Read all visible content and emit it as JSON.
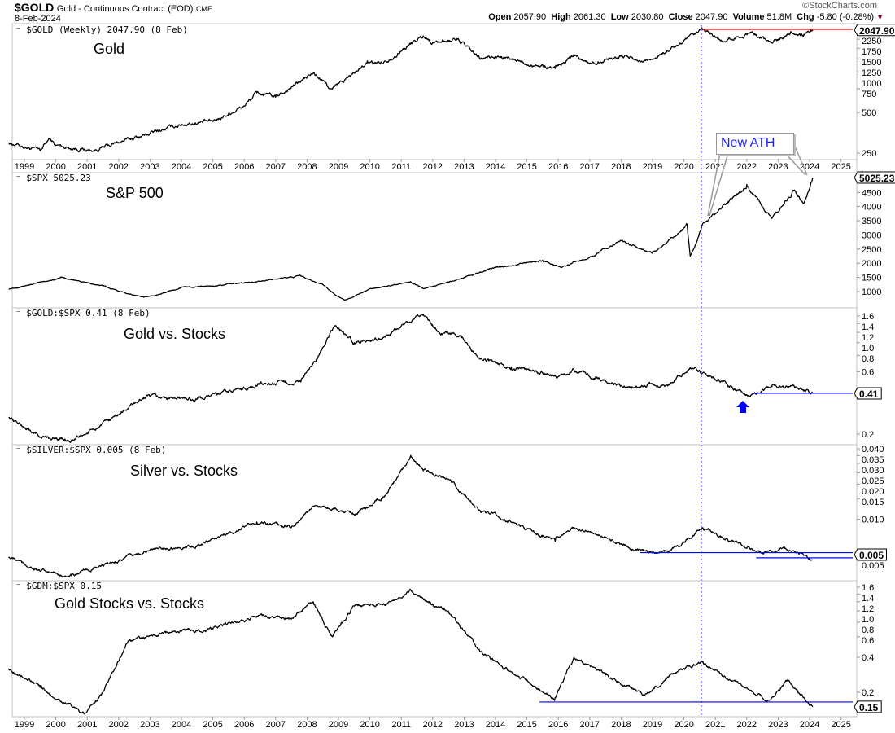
{
  "header": {
    "symbol": "$GOLD",
    "name": "Gold - Continuous Contract (EOD)",
    "exchange": "CME",
    "date": "8-Feb-2024",
    "watermark": "©StockCharts.com",
    "open_label": "Open",
    "open": "2057.90",
    "high_label": "High",
    "high": "2061.30",
    "low_label": "Low",
    "low": "2030.80",
    "close_label": "Close",
    "close": "2047.90",
    "volume_label": "Volume",
    "volume": "51.8M",
    "chg_label": "Chg",
    "chg": "-5.80 (-0.28%)"
  },
  "annotation": {
    "text": "New ATH"
  },
  "colors": {
    "line": "#000000",
    "red": "#ff0000",
    "blue": "#0000ff",
    "grid": "#c0c0c0"
  },
  "chart_data": [
    {
      "type": "line",
      "scale": "log",
      "legend": "$GOLD (Weekly) 2047.90 (8 Feb)",
      "title": "Gold",
      "last_value": "2047.90",
      "yticks": [
        "2250",
        "1750",
        "1500",
        "1250",
        "1000",
        "750",
        "500",
        "250"
      ],
      "ytick_values": [
        2250,
        1750,
        1500,
        1250,
        1000,
        750,
        500,
        250
      ],
      "hline": {
        "value": 2070,
        "from": 2020.6,
        "color": "#ff0000"
      },
      "x": [
        1998.5,
        1999.5,
        1999.8,
        2000,
        2001.2,
        2002,
        2003,
        2004,
        2005,
        2006,
        2006.4,
        2007,
        2008.2,
        2008.8,
        2009.9,
        2010.5,
        2011.7,
        2012,
        2012.8,
        2013.5,
        2014,
        2015.9,
        2016.5,
        2017,
        2018,
        2018.7,
        2019.5,
        2020.6,
        2021.2,
        2022.2,
        2022.8,
        2023.4,
        2023.8,
        2024.1
      ],
      "y": [
        300,
        260,
        320,
        285,
        260,
        300,
        350,
        410,
        430,
        560,
        700,
        650,
        980,
        740,
        1150,
        1200,
        1850,
        1650,
        1750,
        1250,
        1300,
        1060,
        1350,
        1150,
        1330,
        1190,
        1420,
        2050,
        1700,
        1950,
        1640,
        2000,
        1830,
        2048
      ]
    },
    {
      "type": "line",
      "scale": "linear",
      "legend": "$SPX 5025.23",
      "title": "S&P 500",
      "last_value": "5025.23",
      "yticks": [
        "4500",
        "4000",
        "3500",
        "3000",
        "2500",
        "2000",
        "1500",
        "1000"
      ],
      "ytick_values": [
        4500,
        4000,
        3500,
        3000,
        2500,
        2000,
        1500,
        1000
      ],
      "x": [
        1998.5,
        2000.2,
        2001.5,
        2002.8,
        2003.1,
        2004,
        2005,
        2007.8,
        2008.5,
        2009.2,
        2010,
        2011.3,
        2011.7,
        2013,
        2014,
        2015.5,
        2016.1,
        2018,
        2018.98,
        2020.1,
        2020.2,
        2020.6,
        2021,
        2022,
        2022.8,
        2023.5,
        2023.8,
        2024.1
      ],
      "y": [
        1100,
        1500,
        1200,
        800,
        850,
        1150,
        1200,
        1550,
        1250,
        700,
        1100,
        1350,
        1100,
        1500,
        1850,
        2100,
        1850,
        2800,
        2350,
        3380,
        2250,
        3400,
        3750,
        4780,
        3580,
        4550,
        4100,
        5025
      ]
    },
    {
      "type": "line",
      "scale": "log",
      "legend": "$GOLD:$SPX 0.41 (8 Feb)",
      "title": "Gold vs. Stocks",
      "last_value": "0.41",
      "yticks": [
        "1.6",
        "1.4",
        "1.2",
        "1.0",
        "0.8",
        "0.6",
        "0.2"
      ],
      "ytick_values": [
        1.6,
        1.4,
        1.2,
        1.0,
        0.8,
        0.6,
        0.2
      ],
      "hline": {
        "value": 0.41,
        "from": 2022.2,
        "color": "#0000ff"
      },
      "x": [
        1998.5,
        1999.5,
        2000.5,
        2001.3,
        2002.8,
        2003.5,
        2004.5,
        2006.5,
        2007.8,
        2008.3,
        2008.9,
        2009.5,
        2010.5,
        2011.7,
        2012.2,
        2012.9,
        2013.5,
        2014.5,
        2016,
        2016.5,
        2018,
        2019.5,
        2020.2,
        2020.7,
        2022.0,
        2022.8,
        2023.4,
        2024.1
      ],
      "y": [
        0.27,
        0.19,
        0.18,
        0.22,
        0.38,
        0.38,
        0.37,
        0.48,
        0.5,
        0.75,
        1.35,
        1.0,
        1.1,
        1.65,
        1.2,
        1.15,
        0.75,
        0.65,
        0.55,
        0.62,
        0.47,
        0.48,
        0.65,
        0.58,
        0.4,
        0.46,
        0.47,
        0.41
      ]
    },
    {
      "type": "line",
      "scale": "log",
      "legend": "$SILVER:$SPX 0.005 (8 Feb)",
      "title": "Silver vs. Stocks",
      "last_value": "0.005",
      "yticks": [
        "0.040",
        "0.035",
        "0.030",
        "0.025",
        "0.020",
        "0.015",
        "0.010",
        "0.005"
      ],
      "ytick_values": [
        0.04,
        0.035,
        0.03,
        0.025,
        0.02,
        0.015,
        0.01,
        0.005
      ],
      "hlines": [
        {
          "value": 0.0052,
          "from": 2018.6,
          "color": "#0000ff"
        },
        {
          "value": 0.0047,
          "from": 2022.3,
          "color": "#0000ff"
        }
      ],
      "x": [
        1998.5,
        1999.5,
        2000.5,
        2001.5,
        2003,
        2004.5,
        2006.4,
        2007.5,
        2008.2,
        2008.9,
        2009.5,
        2010.5,
        2011.3,
        2011.7,
        2012.5,
        2013.5,
        2014.5,
        2015.9,
        2016.5,
        2018.5,
        2019.5,
        2020.6,
        2021.5,
        2022.5,
        2023.2,
        2024.1
      ],
      "y": [
        0.0048,
        0.0036,
        0.0033,
        0.004,
        0.0055,
        0.006,
        0.0095,
        0.0085,
        0.013,
        0.0125,
        0.011,
        0.016,
        0.035,
        0.026,
        0.022,
        0.012,
        0.0095,
        0.0065,
        0.0085,
        0.0055,
        0.0052,
        0.0085,
        0.0065,
        0.0052,
        0.0058,
        0.0045
      ]
    },
    {
      "type": "line",
      "scale": "log",
      "legend": "$GDM:$SPX 0.15",
      "title": "Gold Stocks vs. Stocks",
      "last_value": "0.15",
      "yticks": [
        "1.6",
        "1.4",
        "1.2",
        "1.0",
        "0.8",
        "0.6",
        "0.4",
        "0.2"
      ],
      "ytick_values": [
        1.6,
        1.4,
        1.2,
        1.0,
        0.8,
        0.6,
        0.4,
        0.2
      ],
      "hline": {
        "value": 0.165,
        "from": 2015.4,
        "color": "#0000ff"
      },
      "x": [
        1998.5,
        1999.5,
        2000.9,
        2001.5,
        2002.3,
        2003.5,
        2005,
        2006.4,
        2007.5,
        2008.2,
        2008.8,
        2009.5,
        2010.5,
        2011.3,
        2012,
        2012.5,
        2013.5,
        2014.5,
        2015.9,
        2016.5,
        2017.5,
        2018.7,
        2019.8,
        2020.6,
        2021.5,
        2022.7,
        2023.3,
        2024.1
      ],
      "y": [
        0.32,
        0.22,
        0.13,
        0.2,
        0.55,
        0.65,
        0.7,
        0.9,
        0.85,
        1.2,
        0.6,
        1.1,
        1.15,
        1.5,
        1.15,
        1.0,
        0.45,
        0.3,
        0.18,
        0.4,
        0.28,
        0.19,
        0.3,
        0.37,
        0.25,
        0.17,
        0.25,
        0.15
      ]
    }
  ],
  "xaxis": {
    "years": [
      "1999",
      "2000",
      "2001",
      "2002",
      "2003",
      "2004",
      "2005",
      "2006",
      "2007",
      "2008",
      "2009",
      "2010",
      "2011",
      "2012",
      "2013",
      "2014",
      "2015",
      "2016",
      "2017",
      "2018",
      "2019",
      "2020",
      "2021",
      "2022",
      "2023",
      "2024",
      "2025"
    ],
    "marker_year": 2020.55
  }
}
